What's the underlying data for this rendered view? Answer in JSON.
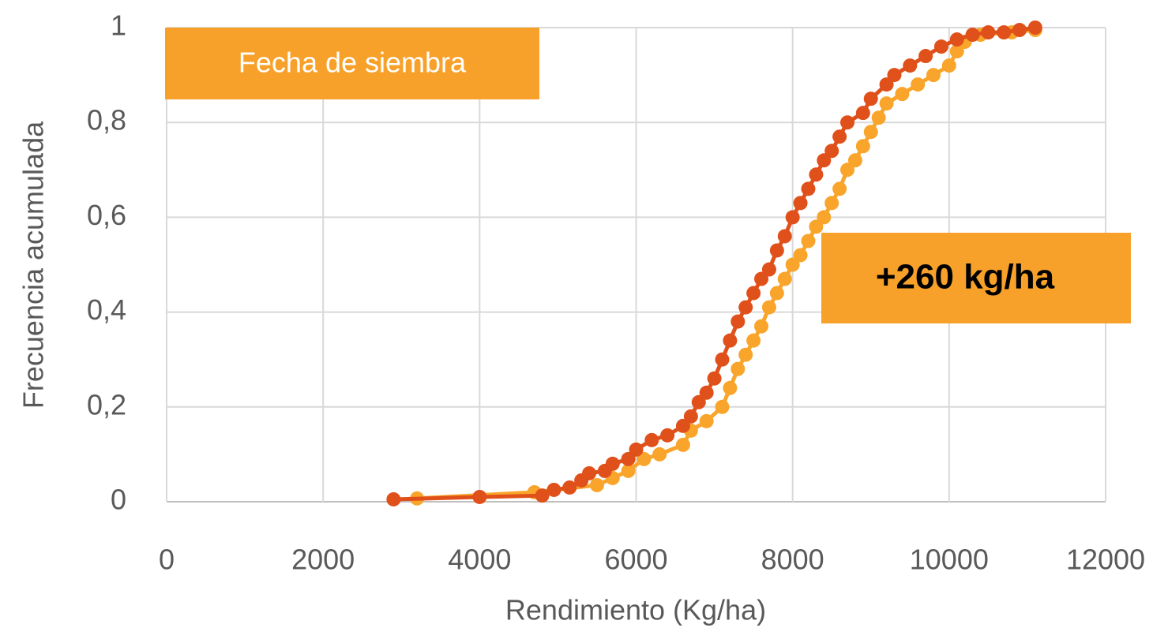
{
  "chart_data": {
    "type": "line",
    "xlabel": "Rendimiento (Kg/ha)",
    "ylabel": "Frecuencia acumulada",
    "annotations": [
      "Fecha de siembra",
      "+260 kg/ha"
    ],
    "xlim": [
      0,
      12000
    ],
    "xticks": [
      0,
      2000,
      4000,
      6000,
      8000,
      10000,
      12000
    ],
    "ylim": [
      0,
      1
    ],
    "yticks": [
      0,
      {
        "value": 0.2,
        "label": "0,2"
      },
      {
        "value": 0.4,
        "label": "0,4"
      },
      {
        "value": 0.6,
        "label": "0,6"
      },
      {
        "value": 0.8,
        "label": "0,8"
      },
      1
    ],
    "grid": true,
    "series": [
      {
        "color": "#f9a52b",
        "x": [
          3200,
          4700,
          5500,
          5700,
          5900,
          6100,
          6300,
          6600,
          6700,
          6900,
          7100,
          7200,
          7300,
          7400,
          7500,
          7600,
          7700,
          7800,
          7900,
          8000,
          8100,
          8200,
          8300,
          8400,
          8500,
          8600,
          8700,
          8800,
          8900,
          9000,
          9100,
          9200,
          9400,
          9600,
          9800,
          10000,
          10100,
          10200,
          10400,
          10800,
          11100
        ],
        "values": [
          0.007,
          0.02,
          0.035,
          0.05,
          0.065,
          0.09,
          0.1,
          0.12,
          0.15,
          0.17,
          0.2,
          0.24,
          0.28,
          0.31,
          0.34,
          0.37,
          0.41,
          0.44,
          0.47,
          0.5,
          0.52,
          0.55,
          0.58,
          0.6,
          0.63,
          0.66,
          0.7,
          0.72,
          0.75,
          0.78,
          0.81,
          0.84,
          0.86,
          0.88,
          0.9,
          0.92,
          0.95,
          0.97,
          0.985,
          0.99,
          0.995
        ]
      },
      {
        "color": "#e0501a",
        "x": [
          2900,
          4000,
          4800,
          4950,
          5150,
          5300,
          5400,
          5600,
          5700,
          5900,
          6000,
          6200,
          6400,
          6600,
          6700,
          6800,
          6900,
          7000,
          7100,
          7200,
          7300,
          7400,
          7500,
          7600,
          7700,
          7800,
          7900,
          8000,
          8100,
          8200,
          8300,
          8400,
          8500,
          8600,
          8700,
          8900,
          9000,
          9200,
          9300,
          9500,
          9700,
          9900,
          10100,
          10300,
          10500,
          10700,
          10900,
          11100
        ],
        "values": [
          0.005,
          0.01,
          0.013,
          0.025,
          0.03,
          0.045,
          0.06,
          0.065,
          0.08,
          0.09,
          0.11,
          0.13,
          0.14,
          0.16,
          0.18,
          0.21,
          0.23,
          0.26,
          0.3,
          0.34,
          0.38,
          0.41,
          0.44,
          0.47,
          0.49,
          0.53,
          0.56,
          0.6,
          0.63,
          0.66,
          0.69,
          0.72,
          0.74,
          0.77,
          0.8,
          0.82,
          0.85,
          0.88,
          0.9,
          0.92,
          0.94,
          0.96,
          0.975,
          0.985,
          0.99,
          0.99,
          0.995,
          1.0
        ]
      }
    ]
  }
}
